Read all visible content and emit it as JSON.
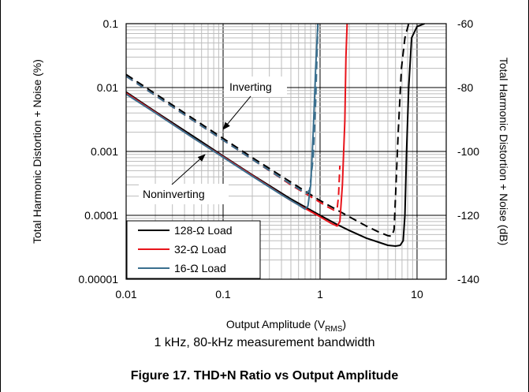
{
  "chart_data": {
    "type": "line",
    "title": "",
    "subtitle": "1 kHz, 80-kHz measurement bandwidth",
    "caption": "Figure 17. THD+N Ratio vs Output Amplitude",
    "xlabel": "Output Amplitude (V",
    "xlabel_sub": "RMS",
    "xlabel_tail": ")",
    "ylabel_left": "Total Harmonic Distortion + Noise (%)",
    "ylabel_right": "Total Harmonic Distortion + Noise (dB)",
    "x_scale": "log",
    "y_scale": "log",
    "xlim": [
      0.01,
      20
    ],
    "ylim": [
      1e-05,
      0.1
    ],
    "ylim_right_db": [
      -140,
      -60
    ],
    "x_ticks": [
      0.01,
      0.1,
      1,
      10
    ],
    "x_tick_labels": [
      "0.01",
      "0.1",
      "1",
      "10"
    ],
    "y_ticks": [
      1e-05,
      0.0001,
      0.001,
      0.01,
      0.1
    ],
    "y_tick_labels": [
      "0.00001",
      "0.0001",
      "0.001",
      "0.01",
      "0.1"
    ],
    "y_right_ticks": [
      -140,
      -120,
      -100,
      -80,
      -60
    ],
    "y_right_tick_labels": [
      "-140",
      "-120",
      "-100",
      "-80",
      "-60"
    ],
    "grid": true,
    "legend_position": "bottom-left",
    "annotations": [
      {
        "text": "Inverting",
        "arrow_to": [
          0.08,
          0.0013
        ]
      },
      {
        "text": "Noninverting",
        "arrow_to": [
          0.11,
          0.0011
        ]
      }
    ],
    "series": [
      {
        "name": "128-Ω Load",
        "color": "#000000",
        "dash": "solid",
        "points": [
          [
            0.01,
            0.0085
          ],
          [
            0.02,
            0.0042
          ],
          [
            0.05,
            0.0017
          ],
          [
            0.1,
            0.00085
          ],
          [
            0.2,
            0.00043
          ],
          [
            0.5,
            0.00018
          ],
          [
            1,
            0.0001
          ],
          [
            1.5,
            7.2e-05
          ],
          [
            2,
            5.8e-05
          ],
          [
            3,
            4.4e-05
          ],
          [
            4,
            3.8e-05
          ],
          [
            5,
            3.4e-05
          ],
          [
            6,
            3.3e-05
          ],
          [
            6.7,
            3.4e-05
          ],
          [
            7.2,
            4e-05
          ],
          [
            7.5,
            0.0001
          ],
          [
            7.8,
            0.001
          ],
          [
            8.2,
            0.01
          ],
          [
            8.8,
            0.06
          ],
          [
            10,
            0.09
          ],
          [
            12,
            0.1
          ]
        ]
      },
      {
        "name": "128-Ω Load (inverting)",
        "color": "#000000",
        "dash": "dashed",
        "points": [
          [
            0.01,
            0.016
          ],
          [
            0.02,
            0.008
          ],
          [
            0.05,
            0.0032
          ],
          [
            0.1,
            0.0016
          ],
          [
            0.2,
            0.0008
          ],
          [
            0.5,
            0.00033
          ],
          [
            1,
            0.00017
          ],
          [
            2,
            9.5e-05
          ],
          [
            3,
            6.8e-05
          ],
          [
            4,
            5.5e-05
          ],
          [
            5,
            4.8e-05
          ],
          [
            5.5,
            4.7e-05
          ],
          [
            5.8,
            6e-05
          ],
          [
            6,
            0.0002
          ],
          [
            6.4,
            0.002
          ],
          [
            6.9,
            0.02
          ],
          [
            7.5,
            0.06
          ],
          [
            8.2,
            0.1
          ]
        ]
      },
      {
        "name": "32-Ω Load",
        "color": "#e8141b",
        "dash": "solid",
        "points": [
          [
            0.01,
            0.0082
          ],
          [
            0.02,
            0.0041
          ],
          [
            0.05,
            0.0016
          ],
          [
            0.1,
            0.00083
          ],
          [
            0.2,
            0.00042
          ],
          [
            0.5,
            0.00017
          ],
          [
            1,
            9.5e-05
          ],
          [
            1.3,
            7.5e-05
          ],
          [
            1.5,
            6.8e-05
          ],
          [
            1.6,
            8e-05
          ],
          [
            1.7,
            0.0003
          ],
          [
            1.8,
            0.003
          ],
          [
            1.85,
            0.03
          ],
          [
            1.9,
            0.1
          ]
        ]
      },
      {
        "name": "32-Ω Load (inverting)",
        "color": "#e8141b",
        "dash": "dashed",
        "points": [
          [
            0.01,
            0.015
          ],
          [
            0.02,
            0.0075
          ],
          [
            0.05,
            0.003
          ],
          [
            0.1,
            0.0015
          ],
          [
            0.2,
            0.00075
          ],
          [
            0.5,
            0.0003
          ],
          [
            1,
            0.00016
          ],
          [
            1.2,
            0.000135
          ],
          [
            1.4,
            0.00012
          ],
          [
            1.5,
            0.000125
          ],
          [
            1.55,
            0.0002
          ],
          [
            1.6,
            0.0006
          ]
        ]
      },
      {
        "name": "16-Ω Load",
        "color": "#3a6f8e",
        "dash": "solid",
        "points": [
          [
            0.01,
            0.0079
          ],
          [
            0.02,
            0.004
          ],
          [
            0.05,
            0.0016
          ],
          [
            0.1,
            0.00081
          ],
          [
            0.2,
            0.00041
          ],
          [
            0.4,
            0.00021
          ],
          [
            0.6,
            0.000145
          ],
          [
            0.7,
            0.000125
          ],
          [
            0.75,
            0.00014
          ],
          [
            0.8,
            0.0003
          ],
          [
            0.85,
            0.002
          ],
          [
            0.9,
            0.02
          ],
          [
            0.95,
            0.1
          ]
        ]
      },
      {
        "name": "16-Ω Load (inverting)",
        "color": "#3a6f8e",
        "dash": "dashed",
        "points": [
          [
            0.01,
            0.015
          ],
          [
            0.02,
            0.0075
          ],
          [
            0.05,
            0.003
          ],
          [
            0.1,
            0.0015
          ],
          [
            0.2,
            0.00075
          ],
          [
            0.4,
            0.00038
          ],
          [
            0.6,
            0.00026
          ],
          [
            0.72,
            0.00022
          ],
          [
            0.78,
            0.00025
          ],
          [
            0.85,
            0.0008
          ],
          [
            0.9,
            0.006
          ],
          [
            0.95,
            0.1
          ]
        ]
      }
    ],
    "legend": [
      {
        "label": "128-Ω Load",
        "color": "#000000"
      },
      {
        "label": "32-Ω Load",
        "color": "#e8141b"
      },
      {
        "label": "16-Ω Load",
        "color": "#3a6f8e"
      }
    ]
  }
}
